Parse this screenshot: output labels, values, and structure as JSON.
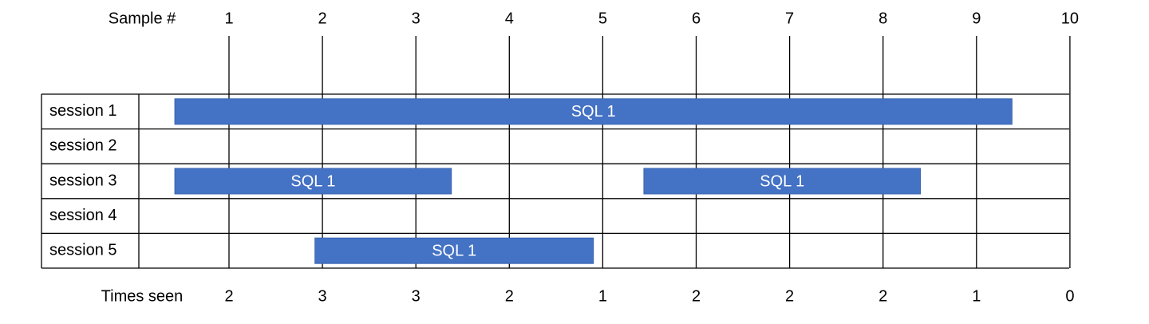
{
  "header_label": "Sample #",
  "samples": [
    1,
    2,
    3,
    4,
    5,
    6,
    7,
    8,
    9,
    10
  ],
  "sessions": [
    {
      "label": "session 1",
      "bars": [
        {
          "label": "SQL 1",
          "start": 0.42,
          "end": 9.38
        }
      ]
    },
    {
      "label": "session 2",
      "bars": []
    },
    {
      "label": "session 3",
      "bars": [
        {
          "label": "SQL 1",
          "start": 0.42,
          "end": 3.38
        },
        {
          "label": "SQL 1",
          "start": 5.44,
          "end": 8.4
        }
      ]
    },
    {
      "label": "session 4",
      "bars": []
    },
    {
      "label": "session 5",
      "bars": [
        {
          "label": "SQL 1",
          "start": 1.92,
          "end": 4.9
        }
      ]
    }
  ],
  "footer_label": "Times seen",
  "times_seen": [
    2,
    3,
    3,
    2,
    1,
    2,
    2,
    2,
    1,
    0
  ]
}
